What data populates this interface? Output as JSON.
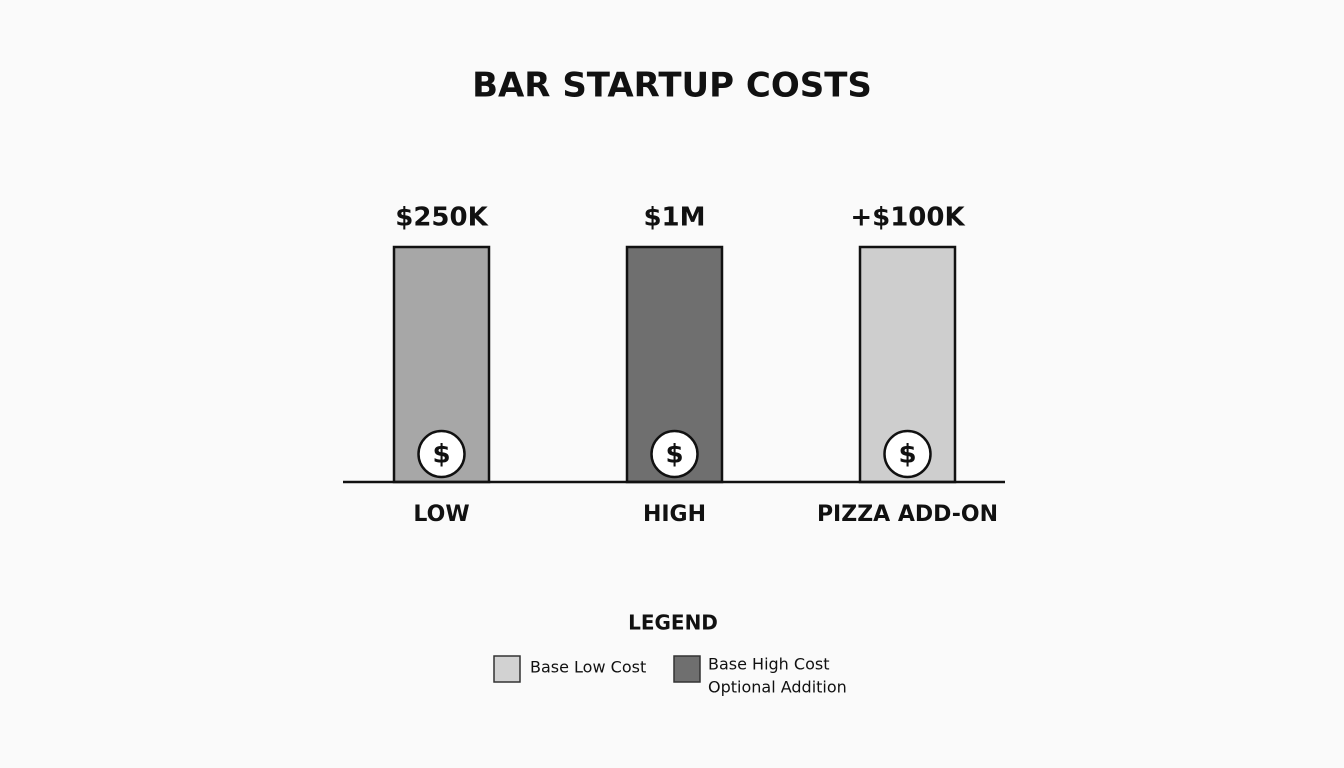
{
  "title": "BAR STARTUP COSTS",
  "columns": [
    {
      "label": "LOW",
      "amount": "$250K",
      "color": "#a7a7a7"
    },
    {
      "label": "HIGH",
      "amount": "$1M",
      "color": "#6f6f6f"
    },
    {
      "label": "PIZZA ADD-ON",
      "amount": "+$100K",
      "color": "#cecece"
    }
  ],
  "icon": "$",
  "legend": {
    "title": "LEGEND",
    "items": [
      {
        "label": "Base Low Cost",
        "color": "#d2d2d2"
      },
      {
        "label": "Base High Cost",
        "color": "#6f6f6f"
      },
      {
        "label": "Optional Addition"
      }
    ]
  }
}
